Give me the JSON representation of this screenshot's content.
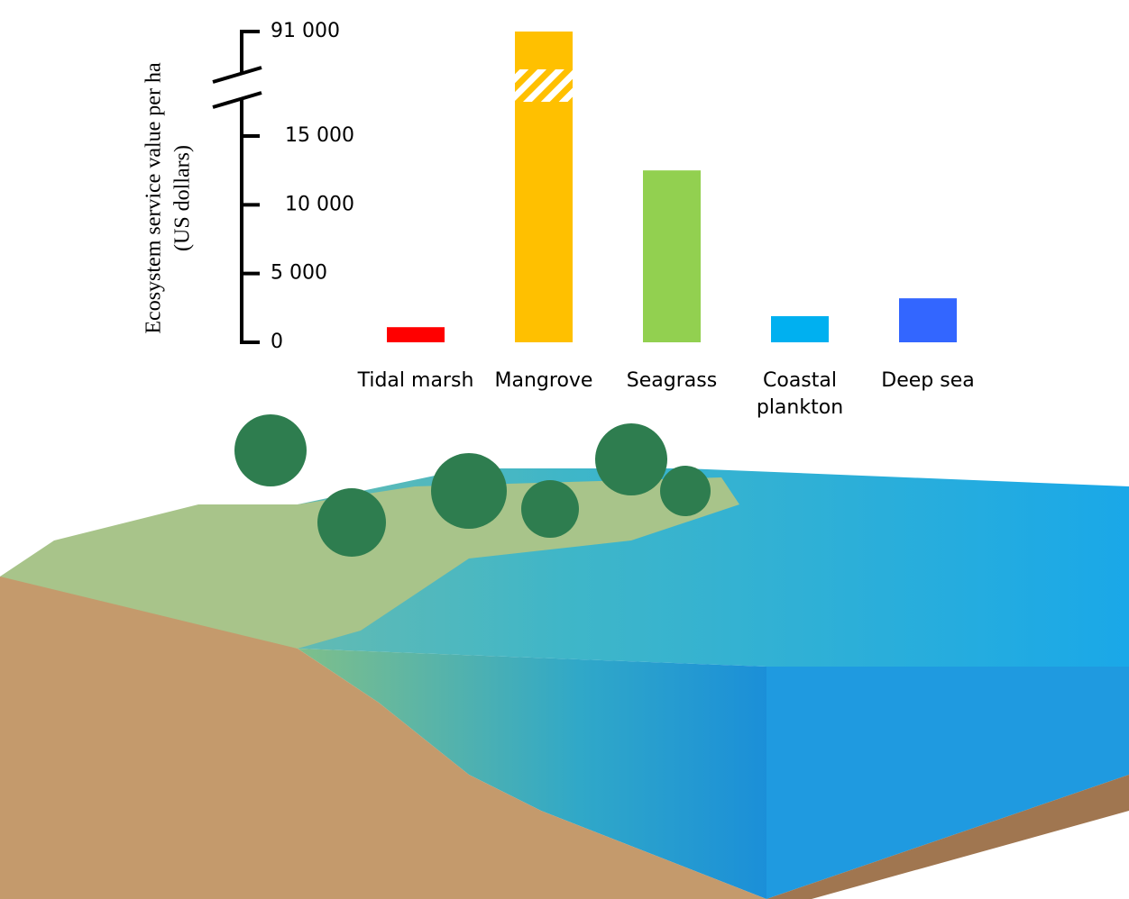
{
  "chart_data": {
    "type": "bar",
    "y_label": [
      "Ecosystem service value per ha",
      "(US dollars)"
    ],
    "categories": [
      "Tidal marsh",
      "Mangrove",
      "Seagrass",
      "Coastal plankton",
      "Deep sea"
    ],
    "values": [
      1100,
      91000,
      12500,
      1900,
      3200
    ],
    "colors": [
      "#ff0000",
      "#ffc000",
      "#92d050",
      "#00b0f0",
      "#3366ff"
    ],
    "ylim": [
      0,
      91000
    ],
    "yticks": [
      0,
      {
        "value": 5000,
        "label": "5 000"
      },
      {
        "value": 10000,
        "label": "10 000"
      },
      {
        "value": 15000,
        "label": "15 000"
      },
      {
        "value": 91000,
        "label": "91 000"
      }
    ],
    "axis_break": true
  }
}
